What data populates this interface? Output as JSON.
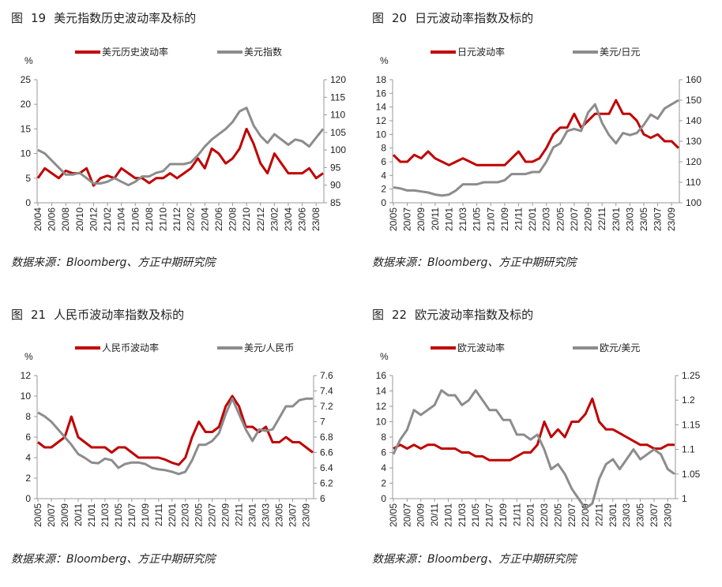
{
  "source": "数据来源：Bloomberg、方正中期研究院",
  "fig_label": "图",
  "chart_data": [
    {
      "type": "line",
      "fig": "19",
      "title": "美元指数历史波动率及标的",
      "unit": "%",
      "start": "20/04",
      "xticks": [
        "20/04",
        "20/06",
        "20/08",
        "20/10",
        "20/12",
        "21/02",
        "21/04",
        "21/06",
        "21/08",
        "21/10",
        "21/12",
        "22/02",
        "22/04",
        "22/06",
        "22/08",
        "22/10",
        "22/12",
        "23/02",
        "23/04",
        "23/06",
        "23/08"
      ],
      "ylim": [
        0,
        25
      ],
      "yticks": [
        0,
        5,
        10,
        15,
        20,
        25
      ],
      "y2lim": [
        85,
        120
      ],
      "y2ticks": [
        85,
        90,
        95,
        100,
        105,
        110,
        115,
        120
      ],
      "series": [
        {
          "name": "美元历史波动率",
          "axis": "left",
          "color": "#c00000",
          "values": [
            5,
            7,
            6,
            5,
            6.5,
            6,
            6,
            7,
            3.5,
            5,
            5.5,
            5,
            7,
            6,
            5,
            5,
            4,
            5,
            5,
            6,
            5,
            6,
            7,
            9,
            7,
            11,
            10,
            8,
            9,
            11,
            15,
            12,
            8,
            6,
            10,
            8,
            6,
            6,
            6,
            7,
            5,
            6
          ]
        },
        {
          "name": "美元指数",
          "axis": "right",
          "color": "#8c8c8c",
          "values": [
            100,
            99,
            97,
            95,
            93,
            93,
            93.5,
            92,
            90.5,
            90.5,
            91,
            92,
            91,
            90,
            91,
            92.5,
            92.5,
            93.5,
            94,
            96,
            96,
            96,
            96.5,
            98.5,
            101,
            103,
            104.5,
            106,
            108,
            111,
            112,
            107,
            104,
            102,
            104.5,
            103,
            101.5,
            103,
            102.5,
            101,
            103.5,
            106
          ]
        }
      ]
    },
    {
      "type": "line",
      "fig": "20",
      "title": "日元波动率指数及标的",
      "unit": "%",
      "start": "20/05",
      "xticks": [
        "20/05",
        "20/07",
        "20/09",
        "20/11",
        "21/01",
        "21/03",
        "21/05",
        "21/07",
        "21/09",
        "21/11",
        "22/01",
        "22/03",
        "22/05",
        "22/07",
        "22/09",
        "22/11",
        "23/01",
        "23/03",
        "23/05",
        "23/07",
        "23/09"
      ],
      "ylim": [
        0,
        18
      ],
      "yticks": [
        0,
        2,
        4,
        6,
        8,
        10,
        12,
        14,
        16,
        18
      ],
      "y2lim": [
        100,
        160
      ],
      "y2ticks": [
        100,
        110,
        120,
        130,
        140,
        150,
        160
      ],
      "series": [
        {
          "name": "日元波动率",
          "axis": "left",
          "color": "#c00000",
          "values": [
            7,
            6,
            6,
            7,
            6.5,
            7.5,
            6.5,
            6,
            5.5,
            6,
            6.5,
            6,
            5.5,
            5.5,
            5.5,
            5.5,
            5.5,
            6.5,
            7.5,
            6,
            6,
            6.5,
            8,
            10,
            11,
            11,
            13,
            11,
            12,
            13,
            13,
            13,
            15,
            13,
            13,
            12,
            10,
            9.5,
            10,
            9,
            9,
            8
          ]
        },
        {
          "name": "美元/日元",
          "axis": "right",
          "color": "#8c8c8c",
          "values": [
            107.5,
            107,
            106,
            106,
            105.5,
            105,
            104,
            103.5,
            104,
            106,
            109,
            109,
            109,
            110,
            110,
            110,
            111,
            114,
            114,
            114,
            115,
            115,
            120,
            127,
            129,
            135,
            136,
            135,
            144,
            148,
            139,
            133,
            129,
            134,
            133,
            134,
            138,
            143,
            141,
            146,
            148,
            150
          ]
        }
      ]
    },
    {
      "type": "line",
      "fig": "21",
      "title": "人民币波动率指数及标的",
      "unit": "%",
      "start": "20/05",
      "xticks": [
        "20/05",
        "20/07",
        "20/09",
        "20/11",
        "21/01",
        "21/03",
        "21/05",
        "21/07",
        "21/09",
        "21/11",
        "22/01",
        "22/03",
        "22/05",
        "22/07",
        "22/09",
        "22/11",
        "23/01",
        "23/03",
        "23/05",
        "23/07",
        "23/09"
      ],
      "ylim": [
        0,
        12
      ],
      "yticks": [
        0,
        2,
        4,
        6,
        8,
        10,
        12
      ],
      "y2lim": [
        6,
        7.6
      ],
      "y2ticks": [
        6,
        6.2,
        6.4,
        6.6,
        6.8,
        7,
        7.2,
        7.4,
        7.6
      ],
      "series": [
        {
          "name": "人民币波动率",
          "axis": "left",
          "color": "#c00000",
          "values": [
            5.5,
            5,
            5,
            5.5,
            6,
            8,
            6,
            5.5,
            5,
            5,
            5,
            4.5,
            5,
            5,
            4.5,
            4,
            4,
            4,
            4,
            3.8,
            3.5,
            3.3,
            4,
            6,
            7.5,
            6.5,
            6.5,
            7,
            9,
            10,
            9,
            7,
            7,
            6.5,
            7,
            5.5,
            5.5,
            6,
            5.5,
            5.5,
            5,
            4.5
          ]
        },
        {
          "name": "美元/人民币",
          "axis": "right",
          "color": "#8c8c8c",
          "values": [
            7.12,
            7.07,
            7.0,
            6.9,
            6.8,
            6.7,
            6.58,
            6.53,
            6.47,
            6.46,
            6.52,
            6.5,
            6.4,
            6.45,
            6.47,
            6.47,
            6.45,
            6.4,
            6.38,
            6.37,
            6.35,
            6.32,
            6.35,
            6.5,
            6.7,
            6.7,
            6.75,
            6.85,
            7.1,
            7.3,
            7.1,
            6.9,
            6.75,
            6.9,
            6.88,
            6.9,
            7.05,
            7.2,
            7.2,
            7.28,
            7.3,
            7.3
          ]
        }
      ]
    },
    {
      "type": "line",
      "fig": "22",
      "title": "欧元波动率指数及标的",
      "unit": "%",
      "start": "20/05",
      "xticks": [
        "20/05",
        "20/07",
        "20/09",
        "20/11",
        "21/01",
        "21/03",
        "21/05",
        "21/07",
        "21/09",
        "21/11",
        "22/01",
        "22/03",
        "22/05",
        "22/07",
        "22/09",
        "22/11",
        "23/01",
        "23/03",
        "23/05",
        "23/07",
        "23/09"
      ],
      "ylim": [
        0,
        16
      ],
      "yticks": [
        0,
        2,
        4,
        6,
        8,
        10,
        12,
        14,
        16
      ],
      "y2lim": [
        1,
        1.25
      ],
      "y2ticks": [
        1,
        1.05,
        1.1,
        1.15,
        1.2,
        1.25
      ],
      "series": [
        {
          "name": "欧元波动率",
          "axis": "left",
          "color": "#c00000",
          "values": [
            6.5,
            7,
            6.5,
            7,
            6.5,
            7,
            7,
            6.5,
            6.5,
            6.5,
            6,
            6,
            5.5,
            5.5,
            5,
            5,
            5,
            5,
            5.5,
            6,
            6,
            7,
            10,
            8,
            9,
            8,
            10,
            10,
            11,
            13,
            10,
            9,
            9,
            8.5,
            8,
            7.5,
            7,
            7,
            6.5,
            6.5,
            7,
            7
          ]
        },
        {
          "name": "欧元/美元",
          "axis": "right",
          "color": "#8c8c8c",
          "values": [
            1.09,
            1.12,
            1.14,
            1.18,
            1.17,
            1.18,
            1.19,
            1.22,
            1.21,
            1.21,
            1.19,
            1.2,
            1.22,
            1.2,
            1.18,
            1.18,
            1.16,
            1.16,
            1.13,
            1.13,
            1.12,
            1.13,
            1.1,
            1.06,
            1.07,
            1.05,
            1.02,
            1.0,
            0.98,
            0.99,
            1.04,
            1.07,
            1.08,
            1.06,
            1.08,
            1.1,
            1.08,
            1.09,
            1.1,
            1.09,
            1.06,
            1.05
          ]
        }
      ]
    }
  ]
}
